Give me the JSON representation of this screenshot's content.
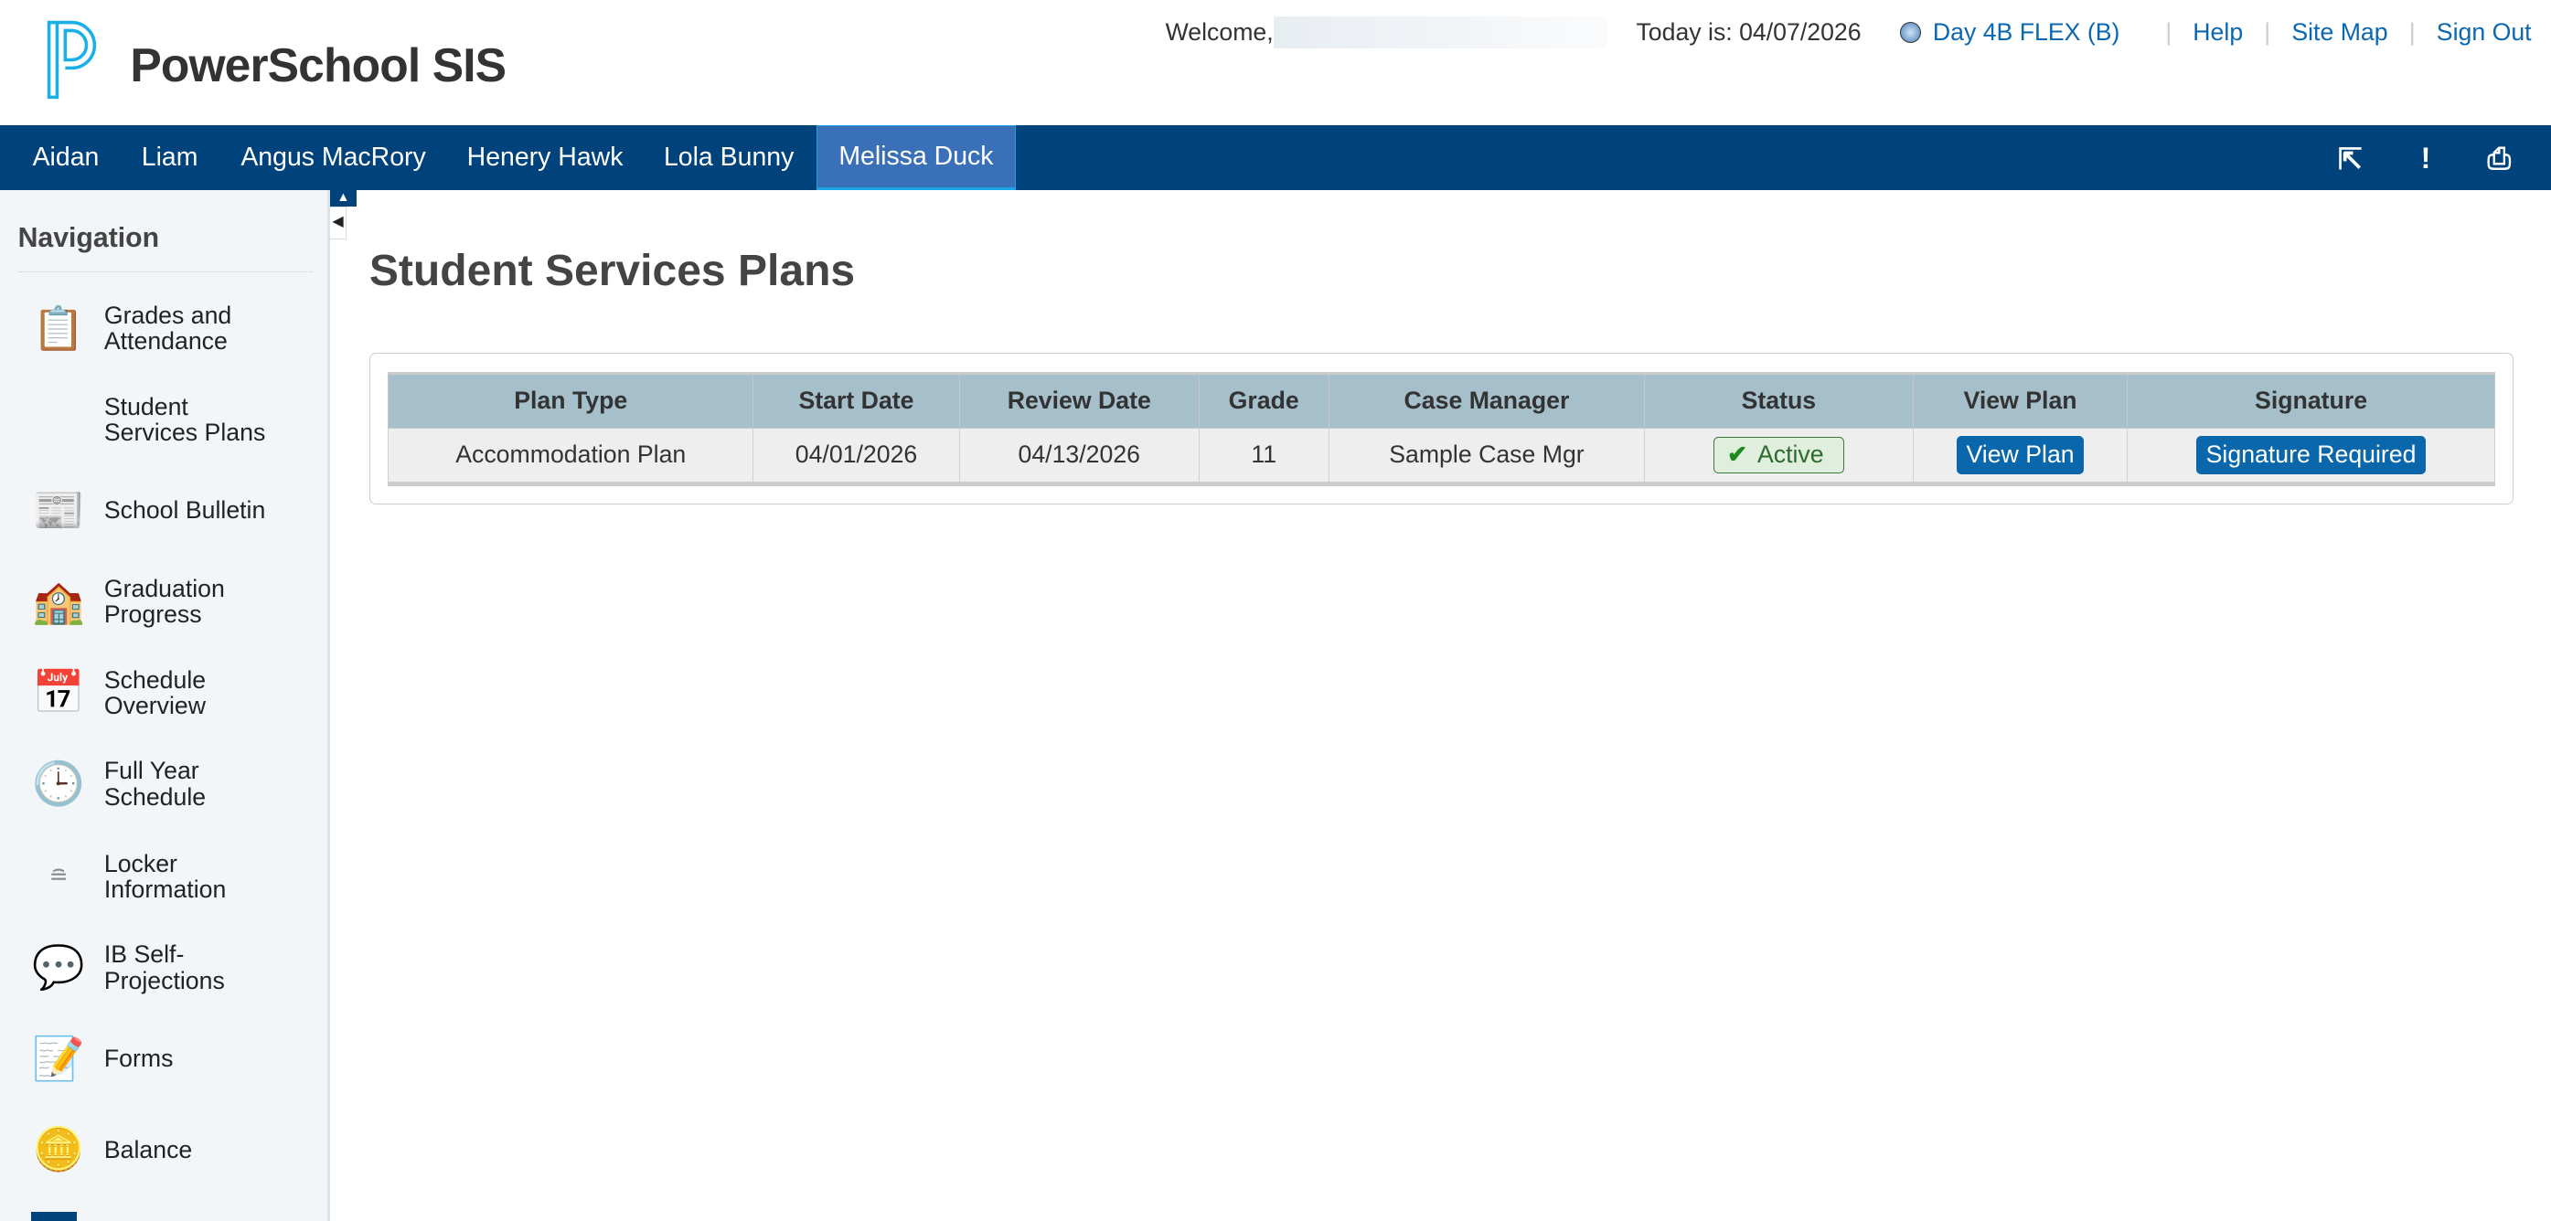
{
  "header": {
    "brand": "PowerSchool SIS",
    "welcome": "Welcome,",
    "today": "Today is: 04/07/2026",
    "day": "Day 4B FLEX (B)",
    "links": [
      "Help",
      "Site Map",
      "Sign Out"
    ]
  },
  "students": [
    "Aidan",
    "Liam",
    "Angus MacRory",
    "Henery Hawk",
    "Lola Bunny",
    "Melissa Duck"
  ],
  "active_student": "Melissa Duck",
  "sidebar": {
    "title": "Navigation",
    "items": [
      {
        "l1": "Grades and",
        "l2": "Attendance",
        "icon": "grades-attendance-icon"
      },
      {
        "l1": "Student",
        "l2": "Services Plans",
        "icon": ""
      },
      {
        "l1": "School Bulletin",
        "l2": "",
        "icon": "bulletin-icon"
      },
      {
        "l1": "Graduation",
        "l2": "Progress",
        "icon": "school-building-icon"
      },
      {
        "l1": "Schedule",
        "l2": "Overview",
        "icon": "calendar-clock-icon"
      },
      {
        "l1": "Full Year",
        "l2": "Schedule",
        "icon": "schedule-clock-icon"
      },
      {
        "l1": "Locker",
        "l2": "Information",
        "icon": "lock-icon"
      },
      {
        "l1": "IB Self-",
        "l2": "Projections",
        "icon": "speech-bubble-icon"
      },
      {
        "l1": "Forms",
        "l2": "",
        "icon": "form-pencil-icon"
      },
      {
        "l1": "Balance",
        "l2": "",
        "icon": "coins-icon"
      }
    ]
  },
  "page": {
    "title": "Student Services Plans",
    "columns": [
      "Plan Type",
      "Start Date",
      "Review Date",
      "Grade",
      "Case Manager",
      "Status",
      "View Plan",
      "Signature"
    ],
    "rows": [
      {
        "plan_type": "Accommodation Plan",
        "start": "04/01/2026",
        "review": "04/13/2026",
        "grade": "11",
        "case_manager": "Sample Case Mgr",
        "status": "Active",
        "view": "View Plan",
        "signature": "Signature Required"
      }
    ]
  },
  "colors": {
    "navbar": "#00427c",
    "active_tab": "#3a70b8",
    "table_header": "#a5bfcb",
    "button": "#0a67ac",
    "link": "#0b68b0"
  }
}
